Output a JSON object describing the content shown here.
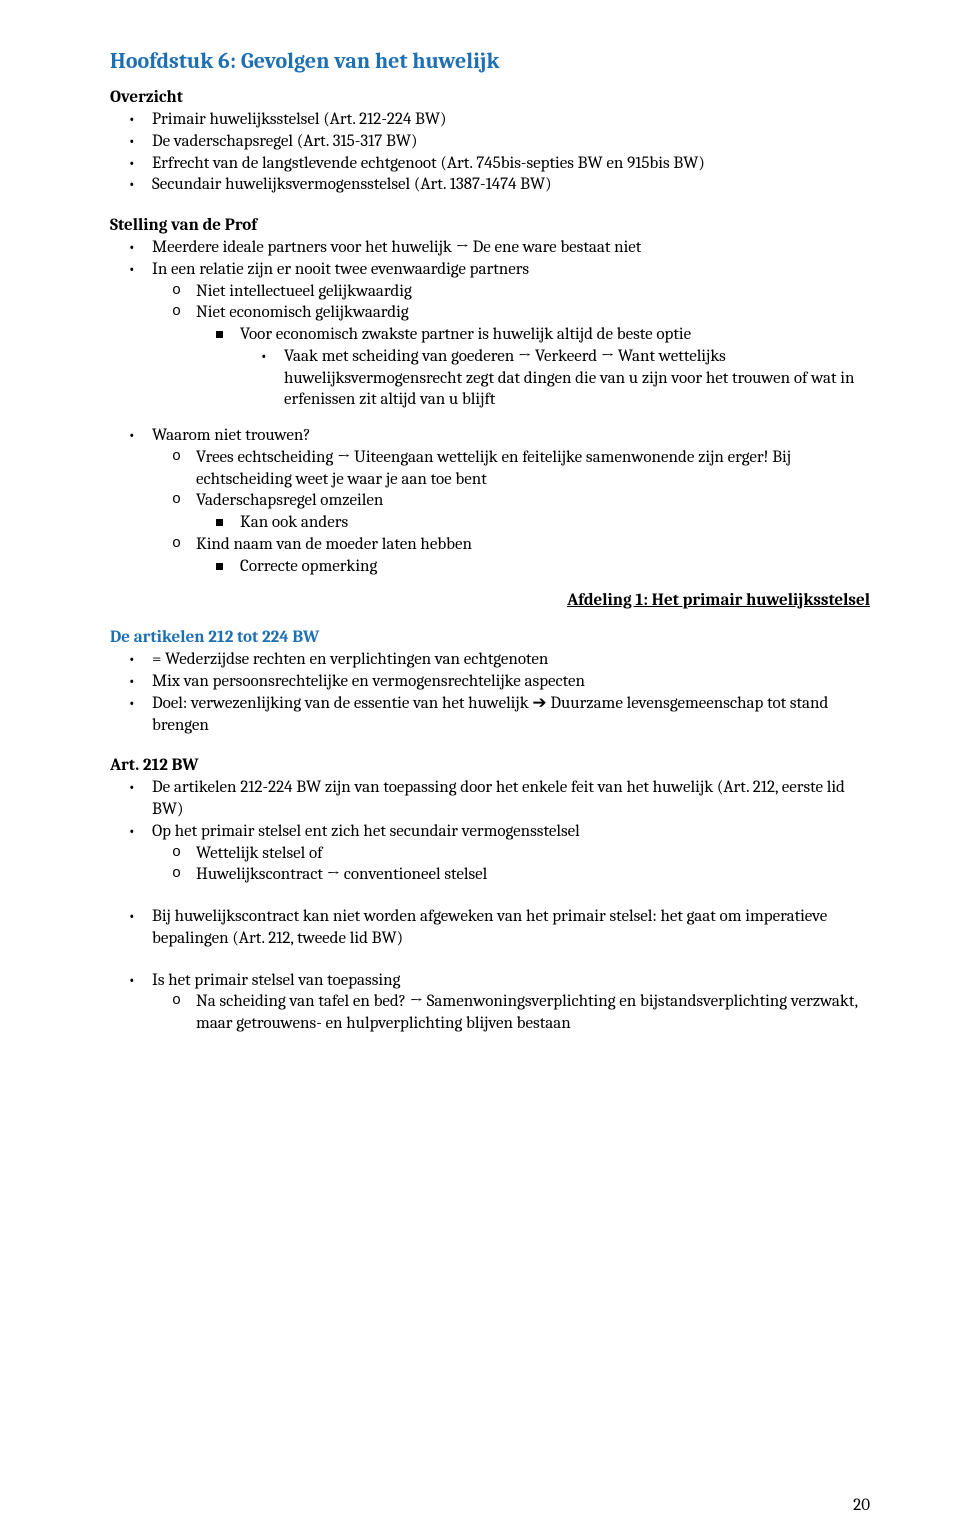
{
  "chapter_title": "Hoofdstuk 6: Gevolgen van het huwelijk",
  "overzicht": {
    "heading": "Overzicht",
    "items": [
      "Primair huwelijksstelsel (Art. 212-224 BW)",
      "De vaderschapsregel (Art. 315-317 BW)",
      "Erfrecht van de langstlevende echtgenoot (Art. 745bis-septies BW en 915bis BW)",
      "Secundair huwelijksvermogensstelsel (Art. 1387-1474 BW)"
    ]
  },
  "stelling": {
    "heading": "Stelling van de Prof",
    "items": [
      "Meerdere ideale partners voor het huwelijk → De ene ware bestaat niet",
      "In een relatie zijn er nooit twee evenwaardige partners"
    ],
    "sub1": "Niet intellectueel gelijkwaardig",
    "sub2": "Niet economisch gelijkwaardig",
    "sub2a": "Voor economisch zwakste partner is huwelijk altijd de beste optie",
    "sub2a1": "Vaak met scheiding van goederen → Verkeerd → Want wettelijks huwelijksvermogensrecht zegt dat dingen die van u zijn voor het trouwen of wat in erfenissen zit altijd van u blijft"
  },
  "waarom": {
    "heading": "Waarom niet trouwen?",
    "o1": "Vrees echtscheiding → Uiteengaan wettelijk en feitelijke samenwonende zijn erger! Bij echtscheiding weet je waar je aan toe bent",
    "o2": "Vaderschapsregel omzeilen",
    "o2a": "Kan ook anders",
    "o3": "Kind naam van de moeder laten hebben",
    "o3a": "Correcte opmerking"
  },
  "afdeling": "Afdeling 1: Het primair huwelijksstelsel",
  "artikelen212": {
    "heading": "De artikelen 212 tot 224 BW",
    "items": [
      "= Wederzijdse rechten en verplichtingen van echtgenoten",
      "Mix van persoonsrechtelijke en vermogensrechtelijke aspecten",
      "Doel: verwezenlijking van de essentie van het huwelijk ➔ Duurzame levensgemeenschap tot stand brengen"
    ]
  },
  "art212": {
    "heading": "Art. 212 BW",
    "i1": "De artikelen 212-224 BW zijn van toepassing door het enkele feit van het huwelijk (Art. 212, eerste lid BW)",
    "i2": "Op het primair stelsel ent zich het secundair vermogensstelsel",
    "i2a": "Wettelijk stelsel of",
    "i2b": "Huwelijkscontract → conventioneel stelsel",
    "i3": "Bij huwelijkscontract kan niet worden afgeweken van het primair stelsel: het gaat om imperatieve bepalingen (Art. 212, tweede lid BW)",
    "i4": "Is het primair stelsel van toepassing",
    "i4a": "Na scheiding van tafel en bed? → Samenwoningsverplichting en bijstandsverplichting verzwakt, maar getrouwens- en hulpverplichting blijven bestaan"
  },
  "page_number": "20",
  "colors": {
    "blue": "#1f6fb3",
    "text": "#000000",
    "background": "#ffffff"
  }
}
